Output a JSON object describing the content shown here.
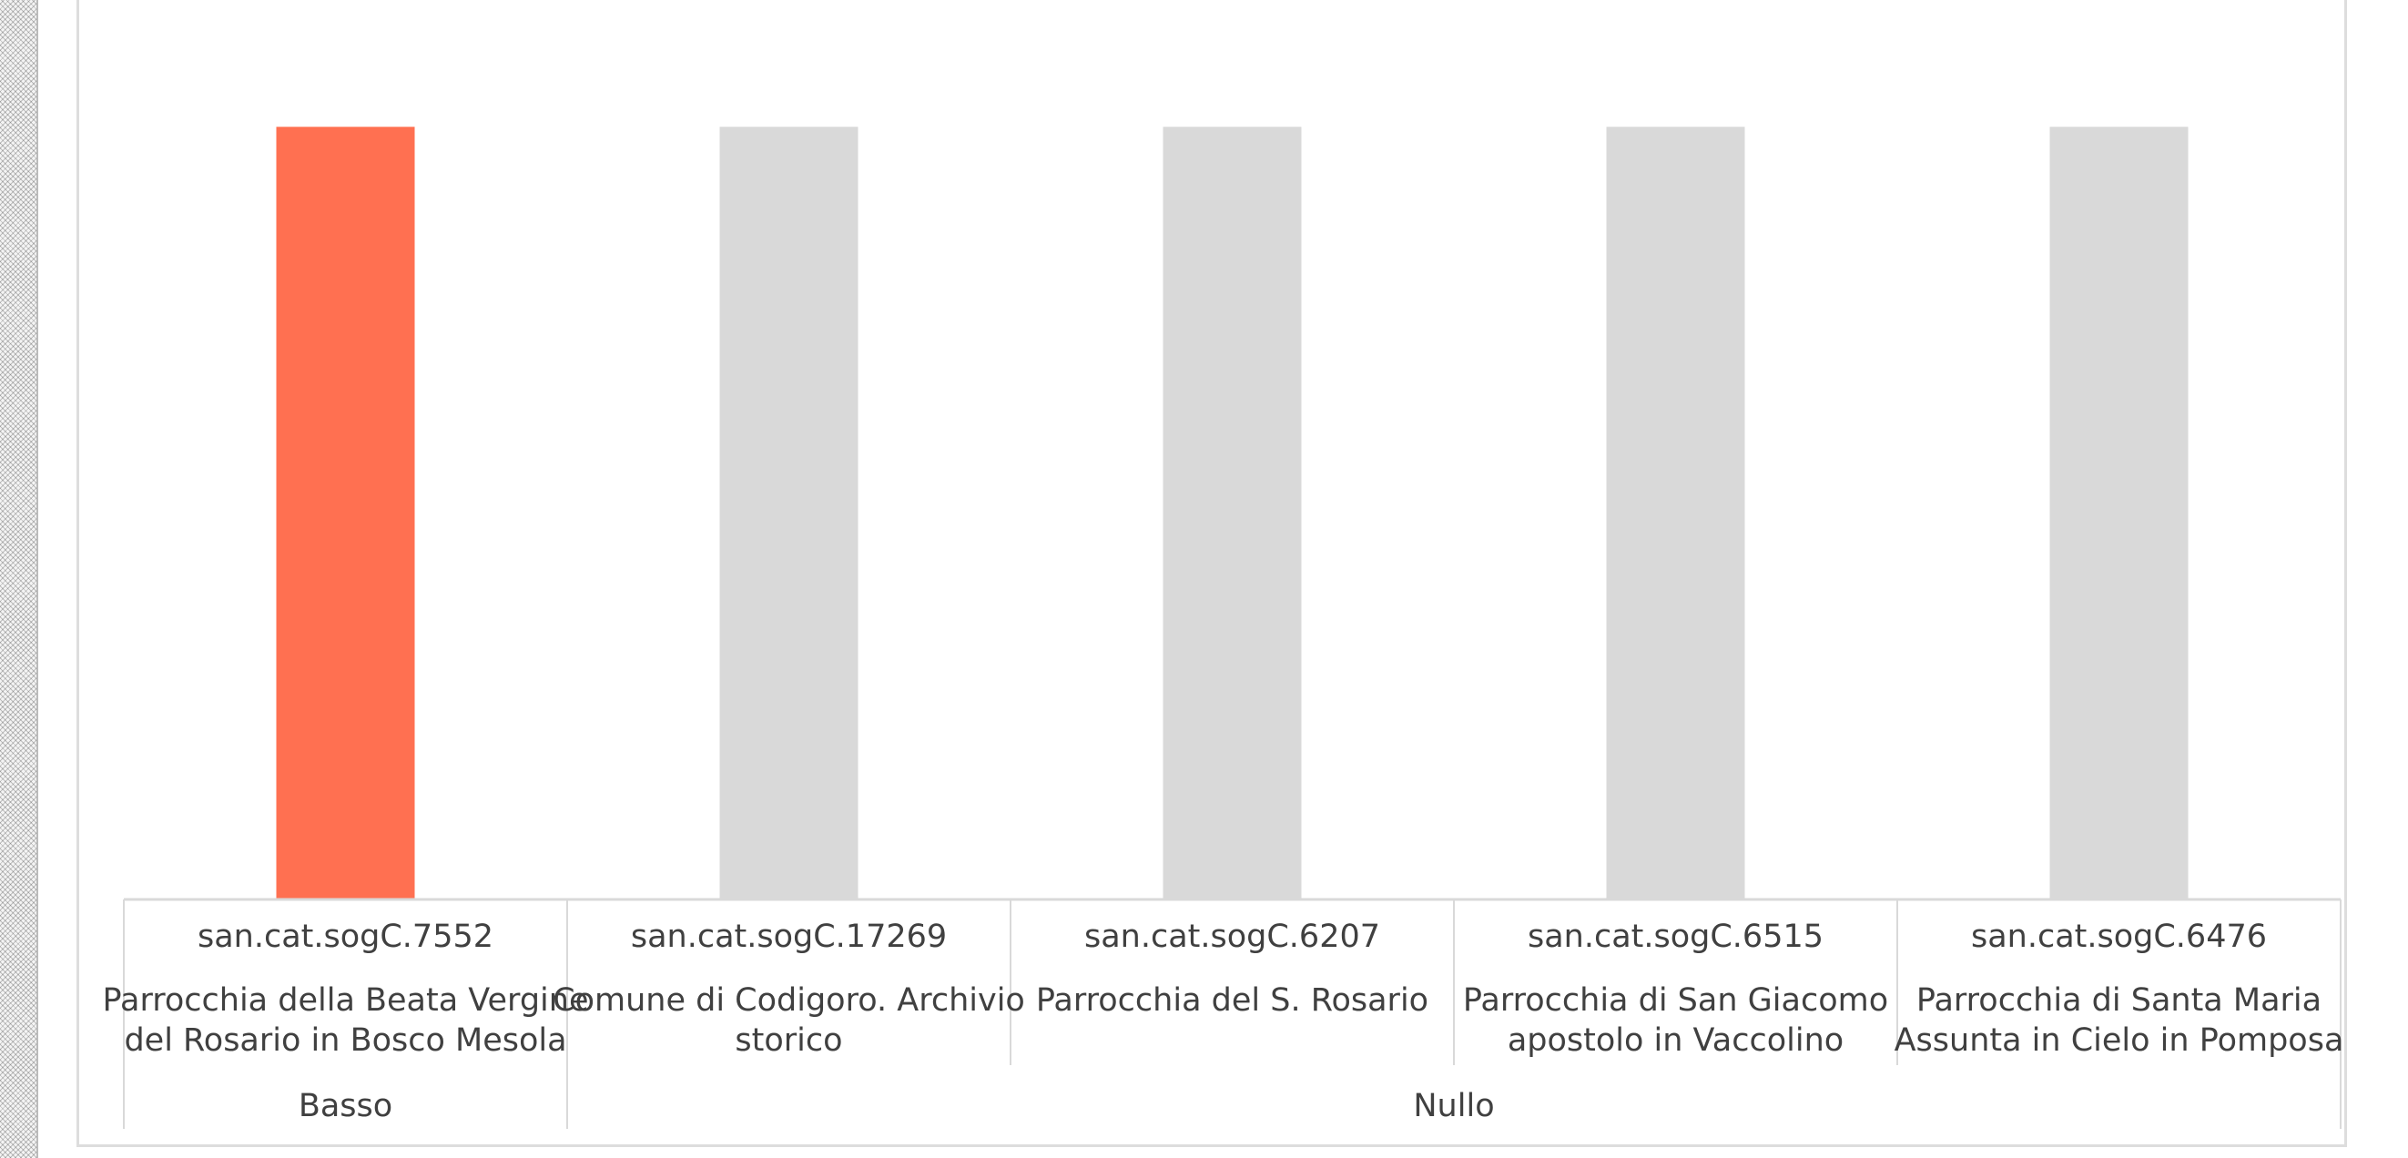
{
  "chart_data": {
    "type": "bar",
    "title": "",
    "xlabel": "",
    "ylabel": "",
    "ylim": [
      0,
      1.15
    ],
    "grid": false,
    "colors": {
      "highlight": "#FF7051",
      "default": "#D9D9D9",
      "axis": "#D9D9D9",
      "text": "#404040"
    },
    "categories": [
      {
        "code": "san.cat.sogC.7552",
        "name_lines": [
          "Parrocchia della Beata Vergine",
          "del Rosario in Bosco Mesola"
        ],
        "group": "Basso",
        "value": 1,
        "highlight": true
      },
      {
        "code": "san.cat.sogC.17269",
        "name_lines": [
          "Comune di Codigoro. Archivio",
          "storico"
        ],
        "group": "Nullo",
        "value": 1,
        "highlight": false
      },
      {
        "code": "san.cat.sogC.6207",
        "name_lines": [
          "Parrocchia del S. Rosario"
        ],
        "group": "Nullo",
        "value": 1,
        "highlight": false
      },
      {
        "code": "san.cat.sogC.6515",
        "name_lines": [
          "Parrocchia di San Giacomo",
          "apostolo in Vaccolino"
        ],
        "group": "Nullo",
        "value": 1,
        "highlight": false
      },
      {
        "code": "san.cat.sogC.6476",
        "name_lines": [
          "Parrocchia di Santa Maria",
          "Assunta in Cielo in Pomposa"
        ],
        "group": "Nullo",
        "value": 1,
        "highlight": false
      }
    ],
    "groups": [
      "Basso",
      "Nullo"
    ]
  }
}
